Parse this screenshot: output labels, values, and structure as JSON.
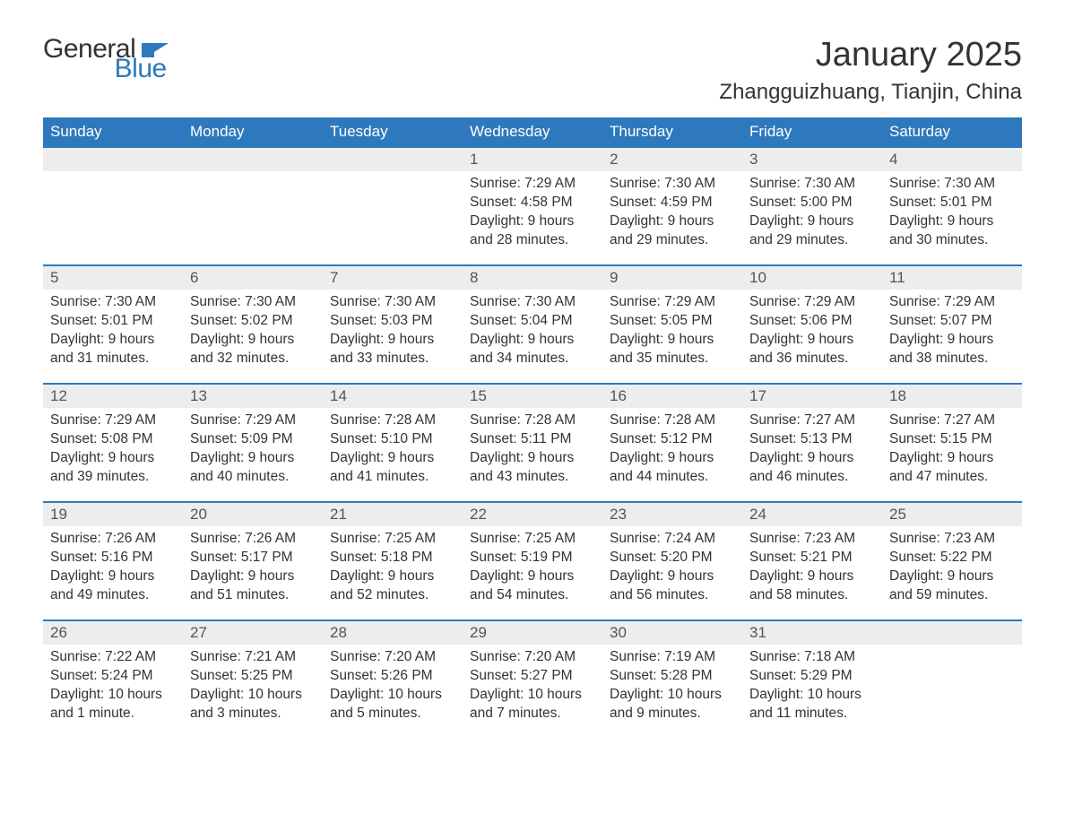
{
  "brand": {
    "word1": "General",
    "word2": "Blue",
    "flag_color": "#2e79bd"
  },
  "title": "January 2025",
  "location": "Zhangguizhuang, Tianjin, China",
  "header_bg": "#2e79bd",
  "header_fg": "#ffffff",
  "daynum_bg": "#ededed",
  "border_color": "#2e79bd",
  "text_color": "#333333",
  "weekdays": [
    "Sunday",
    "Monday",
    "Tuesday",
    "Wednesday",
    "Thursday",
    "Friday",
    "Saturday"
  ],
  "weeks": [
    [
      null,
      null,
      null,
      {
        "d": "1",
        "sr": "7:29 AM",
        "ss": "4:58 PM",
        "dl": "9 hours and 28 minutes."
      },
      {
        "d": "2",
        "sr": "7:30 AM",
        "ss": "4:59 PM",
        "dl": "9 hours and 29 minutes."
      },
      {
        "d": "3",
        "sr": "7:30 AM",
        "ss": "5:00 PM",
        "dl": "9 hours and 29 minutes."
      },
      {
        "d": "4",
        "sr": "7:30 AM",
        "ss": "5:01 PM",
        "dl": "9 hours and 30 minutes."
      }
    ],
    [
      {
        "d": "5",
        "sr": "7:30 AM",
        "ss": "5:01 PM",
        "dl": "9 hours and 31 minutes."
      },
      {
        "d": "6",
        "sr": "7:30 AM",
        "ss": "5:02 PM",
        "dl": "9 hours and 32 minutes."
      },
      {
        "d": "7",
        "sr": "7:30 AM",
        "ss": "5:03 PM",
        "dl": "9 hours and 33 minutes."
      },
      {
        "d": "8",
        "sr": "7:30 AM",
        "ss": "5:04 PM",
        "dl": "9 hours and 34 minutes."
      },
      {
        "d": "9",
        "sr": "7:29 AM",
        "ss": "5:05 PM",
        "dl": "9 hours and 35 minutes."
      },
      {
        "d": "10",
        "sr": "7:29 AM",
        "ss": "5:06 PM",
        "dl": "9 hours and 36 minutes."
      },
      {
        "d": "11",
        "sr": "7:29 AM",
        "ss": "5:07 PM",
        "dl": "9 hours and 38 minutes."
      }
    ],
    [
      {
        "d": "12",
        "sr": "7:29 AM",
        "ss": "5:08 PM",
        "dl": "9 hours and 39 minutes."
      },
      {
        "d": "13",
        "sr": "7:29 AM",
        "ss": "5:09 PM",
        "dl": "9 hours and 40 minutes."
      },
      {
        "d": "14",
        "sr": "7:28 AM",
        "ss": "5:10 PM",
        "dl": "9 hours and 41 minutes."
      },
      {
        "d": "15",
        "sr": "7:28 AM",
        "ss": "5:11 PM",
        "dl": "9 hours and 43 minutes."
      },
      {
        "d": "16",
        "sr": "7:28 AM",
        "ss": "5:12 PM",
        "dl": "9 hours and 44 minutes."
      },
      {
        "d": "17",
        "sr": "7:27 AM",
        "ss": "5:13 PM",
        "dl": "9 hours and 46 minutes."
      },
      {
        "d": "18",
        "sr": "7:27 AM",
        "ss": "5:15 PM",
        "dl": "9 hours and 47 minutes."
      }
    ],
    [
      {
        "d": "19",
        "sr": "7:26 AM",
        "ss": "5:16 PM",
        "dl": "9 hours and 49 minutes."
      },
      {
        "d": "20",
        "sr": "7:26 AM",
        "ss": "5:17 PM",
        "dl": "9 hours and 51 minutes."
      },
      {
        "d": "21",
        "sr": "7:25 AM",
        "ss": "5:18 PM",
        "dl": "9 hours and 52 minutes."
      },
      {
        "d": "22",
        "sr": "7:25 AM",
        "ss": "5:19 PM",
        "dl": "9 hours and 54 minutes."
      },
      {
        "d": "23",
        "sr": "7:24 AM",
        "ss": "5:20 PM",
        "dl": "9 hours and 56 minutes."
      },
      {
        "d": "24",
        "sr": "7:23 AM",
        "ss": "5:21 PM",
        "dl": "9 hours and 58 minutes."
      },
      {
        "d": "25",
        "sr": "7:23 AM",
        "ss": "5:22 PM",
        "dl": "9 hours and 59 minutes."
      }
    ],
    [
      {
        "d": "26",
        "sr": "7:22 AM",
        "ss": "5:24 PM",
        "dl": "10 hours and 1 minute."
      },
      {
        "d": "27",
        "sr": "7:21 AM",
        "ss": "5:25 PM",
        "dl": "10 hours and 3 minutes."
      },
      {
        "d": "28",
        "sr": "7:20 AM",
        "ss": "5:26 PM",
        "dl": "10 hours and 5 minutes."
      },
      {
        "d": "29",
        "sr": "7:20 AM",
        "ss": "5:27 PM",
        "dl": "10 hours and 7 minutes."
      },
      {
        "d": "30",
        "sr": "7:19 AM",
        "ss": "5:28 PM",
        "dl": "10 hours and 9 minutes."
      },
      {
        "d": "31",
        "sr": "7:18 AM",
        "ss": "5:29 PM",
        "dl": "10 hours and 11 minutes."
      },
      null
    ]
  ],
  "labels": {
    "sunrise": "Sunrise: ",
    "sunset": "Sunset: ",
    "daylight": "Daylight: "
  }
}
